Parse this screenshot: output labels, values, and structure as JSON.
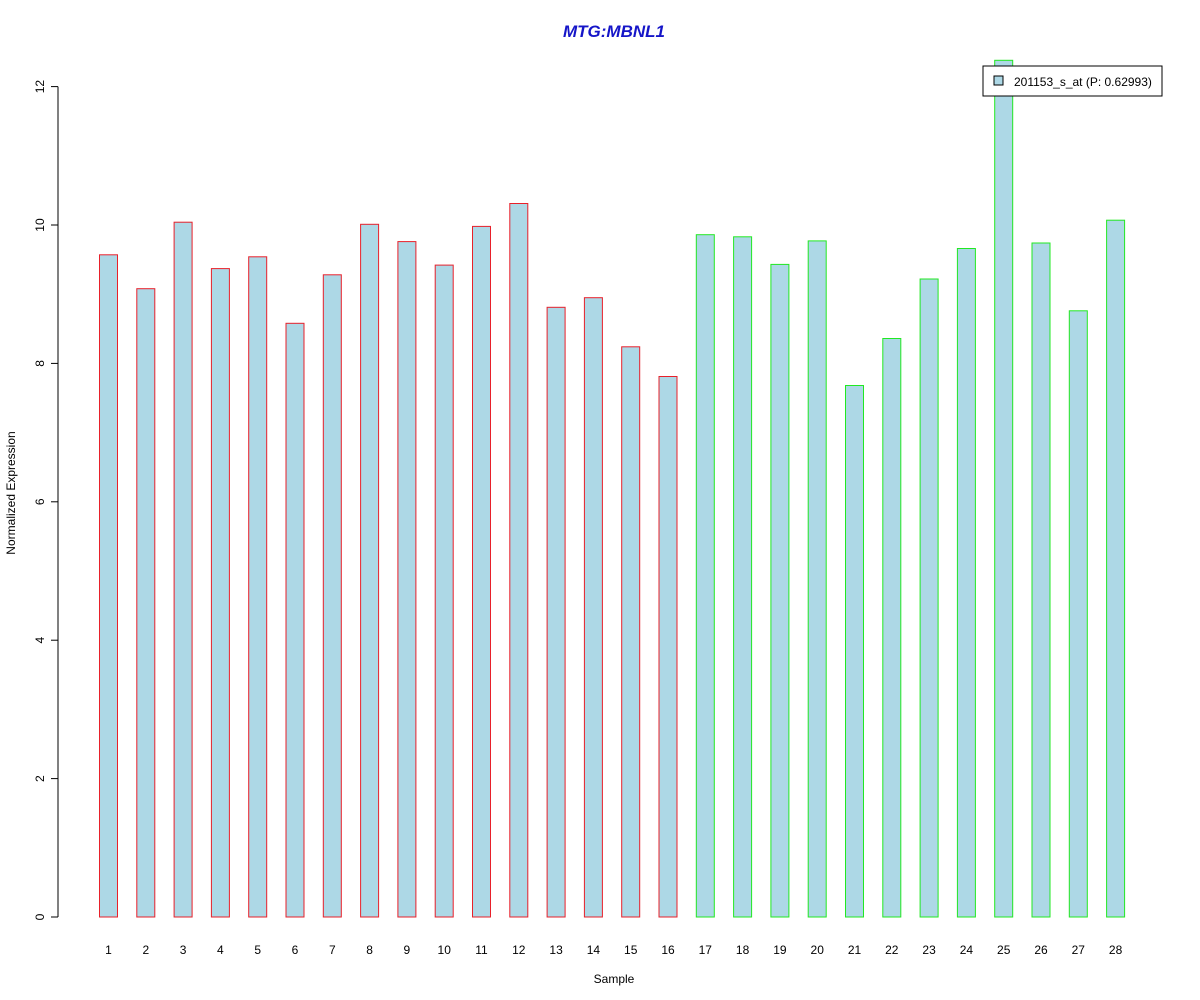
{
  "chart_data": {
    "type": "bar",
    "title": "MTG:MBNL1",
    "xlabel": "Sample",
    "ylabel": "Normalized Expression",
    "categories": [
      "1",
      "2",
      "3",
      "4",
      "5",
      "6",
      "7",
      "8",
      "9",
      "10",
      "11",
      "12",
      "13",
      "14",
      "15",
      "16",
      "17",
      "18",
      "19",
      "20",
      "21",
      "22",
      "23",
      "24",
      "25",
      "26",
      "27",
      "28"
    ],
    "series": [
      {
        "name": "201153_s_at (P: 0.62993)",
        "values": [
          9.57,
          9.08,
          10.04,
          9.37,
          9.54,
          8.58,
          9.28,
          10.01,
          9.76,
          9.42,
          9.98,
          10.31,
          8.81,
          8.95,
          8.24,
          7.81,
          9.86,
          9.83,
          9.43,
          9.77,
          7.68,
          8.36,
          9.22,
          9.66,
          12.38,
          9.74,
          8.76,
          10.07
        ]
      }
    ],
    "bar_groups": [
      {
        "samples": "1-16",
        "border_color": "#e8202a"
      },
      {
        "samples": "17-28",
        "border_color": "#22e822"
      }
    ],
    "bar_fill": "#add8e6",
    "title_color": "#1515c8",
    "yticks": [
      0,
      2,
      4,
      6,
      8,
      10,
      12
    ],
    "ylim": [
      0,
      12
    ],
    "grid": false,
    "legend_position": "top-right"
  }
}
